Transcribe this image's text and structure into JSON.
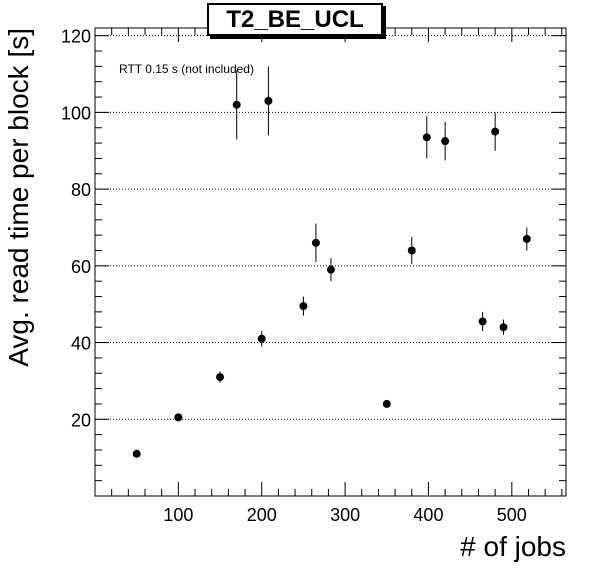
{
  "chart_data": {
    "type": "scatter",
    "title": "T2_BE_UCL",
    "xlabel": "# of jobs",
    "ylabel": "Avg. read time per block [s]",
    "annotation": "RTT 0.15 s (not included)",
    "xlim": [
      0,
      565
    ],
    "ylim": [
      0,
      122
    ],
    "x_ticks": [
      100,
      200,
      300,
      400,
      500
    ],
    "y_ticks": [
      20,
      40,
      60,
      80,
      100,
      120
    ],
    "grid": "horizontal dotted",
    "points": [
      {
        "x": 50,
        "y": 11,
        "err": 0.8
      },
      {
        "x": 100,
        "y": 20.5,
        "err": 0.8
      },
      {
        "x": 150,
        "y": 31,
        "err": 1.5
      },
      {
        "x": 170,
        "y": 102,
        "err": 9
      },
      {
        "x": 200,
        "y": 41,
        "err": 2
      },
      {
        "x": 208,
        "y": 103,
        "err": 9
      },
      {
        "x": 250,
        "y": 49.5,
        "err": 2.5
      },
      {
        "x": 265,
        "y": 66,
        "err": 5
      },
      {
        "x": 283,
        "y": 59,
        "err": 3
      },
      {
        "x": 350,
        "y": 24,
        "err": 0.5
      },
      {
        "x": 380,
        "y": 64,
        "err": 3.5
      },
      {
        "x": 398,
        "y": 93.5,
        "err": 5.5
      },
      {
        "x": 420,
        "y": 92.5,
        "err": 5
      },
      {
        "x": 465,
        "y": 45.5,
        "err": 2.5
      },
      {
        "x": 480,
        "y": 95,
        "err": 5
      },
      {
        "x": 490,
        "y": 44,
        "err": 2
      },
      {
        "x": 518,
        "y": 67,
        "err": 3
      }
    ]
  }
}
